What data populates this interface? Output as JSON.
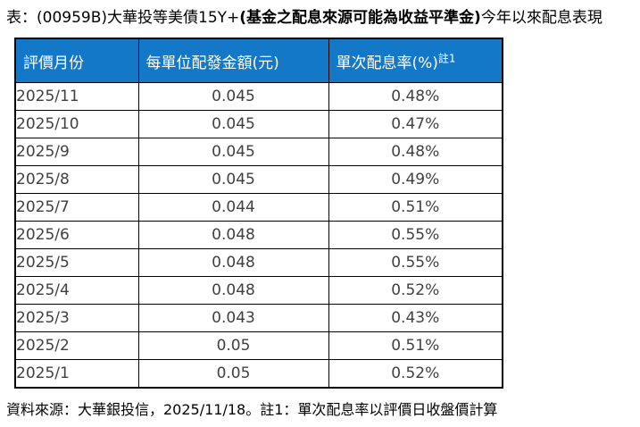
{
  "title": {
    "prefix": "表：(00959B)大華投等美債15Y+",
    "bold": "(基金之配息來源可能為收益平準金)",
    "suffix": "今年以來配息表現"
  },
  "table": {
    "headers": {
      "month": "評價月份",
      "amount": "每單位配發金額(元)",
      "rate": "單次配息率(%)",
      "rate_note_sup": "註1"
    },
    "rows": [
      {
        "month": "2025/11",
        "amount": "0.045",
        "rate": "0.48%"
      },
      {
        "month": "2025/10",
        "amount": "0.045",
        "rate": "0.47%"
      },
      {
        "month": "2025/9",
        "amount": "0.045",
        "rate": "0.48%"
      },
      {
        "month": "2025/8",
        "amount": "0.045",
        "rate": "0.49%"
      },
      {
        "month": "2025/7",
        "amount": "0.044",
        "rate": "0.51%"
      },
      {
        "month": "2025/6",
        "amount": "0.048",
        "rate": "0.55%"
      },
      {
        "month": "2025/5",
        "amount": "0.048",
        "rate": "0.55%"
      },
      {
        "month": "2025/4",
        "amount": "0.048",
        "rate": "0.52%"
      },
      {
        "month": "2025/3",
        "amount": "0.043",
        "rate": "0.43%"
      },
      {
        "month": "2025/2",
        "amount": "0.05",
        "rate": "0.51%"
      },
      {
        "month": "2025/1",
        "amount": "0.05",
        "rate": "0.52%"
      }
    ]
  },
  "footer": "資料來源：大華銀投信，2025/11/18。註1：單次配息率以評價日收盤價計算",
  "colors": {
    "header_bg": "#1478C8",
    "header_text": "#FFFFFF",
    "body_text": "#404040",
    "border": "#000000"
  },
  "chart_data": {
    "type": "table",
    "title": "表：(00959B)大華投等美債15Y+(基金之配息來源可能為收益平準金)今年以來配息表現",
    "columns": [
      "評價月份",
      "每單位配發金額(元)",
      "單次配息率(%)註1"
    ],
    "categories": [
      "2025/11",
      "2025/10",
      "2025/9",
      "2025/8",
      "2025/7",
      "2025/6",
      "2025/5",
      "2025/4",
      "2025/3",
      "2025/2",
      "2025/1"
    ],
    "series": [
      {
        "name": "每單位配發金額(元)",
        "values": [
          0.045,
          0.045,
          0.045,
          0.045,
          0.044,
          0.048,
          0.048,
          0.048,
          0.043,
          0.05,
          0.05
        ]
      },
      {
        "name": "單次配息率(%)",
        "values": [
          0.48,
          0.47,
          0.48,
          0.49,
          0.51,
          0.55,
          0.55,
          0.52,
          0.43,
          0.51,
          0.52
        ]
      }
    ],
    "annotations": [
      "資料來源：大華銀投信，2025/11/18。註1：單次配息率以評價日收盤價計算"
    ]
  }
}
